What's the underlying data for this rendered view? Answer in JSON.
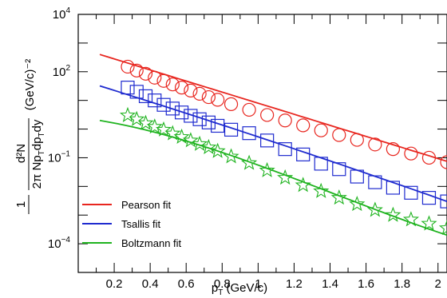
{
  "chart_data": {
    "type": "scatter",
    "title": "",
    "xlabel": "p",
    "xlabel_sub": "T",
    "xlabel_unit": " (GeV/c)",
    "ylabel": {
      "prefix": "1",
      "den_main": "2π Np",
      "den_sub": "T",
      "den_tail": "dp",
      "den_sub2": "T",
      "den_end": "dy",
      "num": "d²N",
      "unit": "(GeV/c)⁻²"
    },
    "xlim": [
      0,
      2.05
    ],
    "ylim": [
      1e-05,
      10000
    ],
    "y_scale": "log",
    "x_ticks": [
      {
        "v": 0.2,
        "label": "0.2"
      },
      {
        "v": 0.4,
        "label": "0.4"
      },
      {
        "v": 0.6,
        "label": "0.6"
      },
      {
        "v": 0.8,
        "label": "0.8"
      },
      {
        "v": 1.0,
        "label": "1"
      },
      {
        "v": 1.2,
        "label": "1.2"
      },
      {
        "v": 1.4,
        "label": "1.4"
      },
      {
        "v": 1.6,
        "label": "1.6"
      },
      {
        "v": 1.8,
        "label": "1.8"
      },
      {
        "v": 2.0,
        "label": "2"
      }
    ],
    "y_ticks": [
      {
        "v": 10000,
        "base": "10",
        "exp": "4"
      },
      {
        "v": 100,
        "base": "10",
        "exp": "2"
      },
      {
        "v": 0.1,
        "base": "10",
        "exp": "−1"
      },
      {
        "v": 0.0001,
        "base": "10",
        "exp": "−4"
      }
    ],
    "series": [
      {
        "name": "Pearson fit",
        "color": "#e8261f",
        "marker": "circle",
        "x": [
          0.275,
          0.325,
          0.375,
          0.425,
          0.475,
          0.525,
          0.575,
          0.625,
          0.675,
          0.725,
          0.775,
          0.85,
          0.95,
          1.05,
          1.15,
          1.25,
          1.35,
          1.45,
          1.55,
          1.65,
          1.75,
          1.85,
          1.95,
          2.05
        ],
        "y": [
          150,
          110,
          85,
          62,
          48,
          36,
          28,
          22,
          17,
          13,
          10.5,
          7.4,
          4.7,
          3.1,
          2.0,
          1.35,
          0.9,
          0.62,
          0.42,
          0.29,
          0.2,
          0.14,
          0.1,
          0.07
        ],
        "fit_x": [
          0.12,
          2.05
        ],
        "fit_y": [
          400,
          0.075
        ]
      },
      {
        "name": "Tsallis fit",
        "color": "#1f2bcf",
        "marker": "square",
        "x": [
          0.275,
          0.325,
          0.375,
          0.425,
          0.475,
          0.525,
          0.575,
          0.625,
          0.675,
          0.725,
          0.775,
          0.85,
          0.95,
          1.05,
          1.15,
          1.25,
          1.35,
          1.45,
          1.55,
          1.65,
          1.75,
          1.85,
          1.95,
          2.05
        ],
        "y": [
          28,
          20,
          14,
          10,
          7,
          5.2,
          3.8,
          2.9,
          2.2,
          1.7,
          1.3,
          0.95,
          0.72,
          0.4,
          0.2,
          0.13,
          0.062,
          0.04,
          0.022,
          0.014,
          0.009,
          0.006,
          0.004,
          0.003
        ],
        "fit_x": [
          0.12,
          2.05
        ],
        "fit_y": [
          32,
          0.003
        ]
      },
      {
        "name": "Boltzmann fit",
        "color": "#1fb31f",
        "marker": "star",
        "x": [
          0.275,
          0.325,
          0.375,
          0.425,
          0.475,
          0.525,
          0.575,
          0.625,
          0.675,
          0.725,
          0.775,
          0.85,
          0.95,
          1.05,
          1.15,
          1.25,
          1.35,
          1.45,
          1.55,
          1.65,
          1.75,
          1.85,
          1.95,
          2.05
        ],
        "y": [
          3.0,
          2.2,
          1.6,
          1.2,
          0.95,
          0.7,
          0.53,
          0.4,
          0.3,
          0.23,
          0.17,
          0.11,
          0.065,
          0.036,
          0.02,
          0.011,
          0.0068,
          0.004,
          0.0024,
          0.0015,
          0.001,
          0.0007,
          0.0005,
          0.00035
        ],
        "fit_x": [
          0.12,
          2.05
        ],
        "fit_y": [
          2.0,
          0.0002
        ]
      }
    ],
    "legend_position": "bottom-left",
    "grid": false
  }
}
